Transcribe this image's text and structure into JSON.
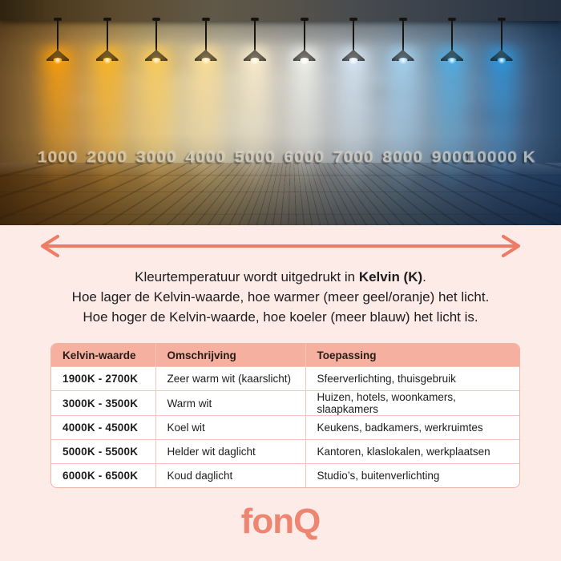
{
  "photo": {
    "description": "Ten pendant lamps over a plaster wall, colour temperature scale from warm to cool",
    "lamps": [
      {
        "label": "1000",
        "glow": "#ffa000"
      },
      {
        "label": "2000",
        "glow": "#ffb61e"
      },
      {
        "label": "3000",
        "glow": "#ffcd55"
      },
      {
        "label": "4000",
        "glow": "#ffe096"
      },
      {
        "label": "5000",
        "glow": "#fff0cd"
      },
      {
        "label": "6000",
        "glow": "#f6f6f0"
      },
      {
        "label": "7000",
        "glow": "#dcebf8"
      },
      {
        "label": "8000",
        "glow": "#a6d6f4"
      },
      {
        "label": "9000",
        "glow": "#4fb2e8"
      },
      {
        "label": "10000 K",
        "glow": "#2b9adf"
      }
    ]
  },
  "intro": {
    "line1_prefix": "Kleurtemperatuur wordt uitgedrukt in ",
    "line1_bold": "Kelvin (K)",
    "line1_suffix": ".",
    "line2": "Hoe lager de Kelvin-waarde, hoe warmer (meer geel/oranje) het licht.",
    "line3": "Hoe hoger de Kelvin-waarde, hoe koeler (meer blauw) het licht is."
  },
  "table": {
    "headers": [
      "Kelvin-waarde",
      "Omschrijving",
      "Toepassing"
    ],
    "rows": [
      {
        "kelvin": "1900K - 2700K",
        "omschrijving": "Zeer warm wit (kaarslicht)",
        "toepassing": "Sfeerverlichting, thuisgebruik"
      },
      {
        "kelvin": "3000K - 3500K",
        "omschrijving": "Warm wit",
        "toepassing": "Huizen, hotels, woonkamers, slaapkamers"
      },
      {
        "kelvin": "4000K - 4500K",
        "omschrijving": "Koel wit",
        "toepassing": "Keukens, badkamers, werkruimtes"
      },
      {
        "kelvin": "5000K - 5500K",
        "omschrijving": "Helder wit daglicht",
        "toepassing": "Kantoren, klaslokalen, werkplaatsen"
      },
      {
        "kelvin": "6000K - 6500K",
        "omschrijving": "Koud daglicht",
        "toepassing": "Studio’s, buitenverlichting"
      }
    ]
  },
  "footer": {
    "brand": "fonQ"
  },
  "colors": {
    "background": "#fcebe7",
    "accent_arrow": "#ee7b64",
    "brand": "#ee8571",
    "table_header_bg": "#f6b0a0",
    "table_border": "#f6c5b7"
  }
}
